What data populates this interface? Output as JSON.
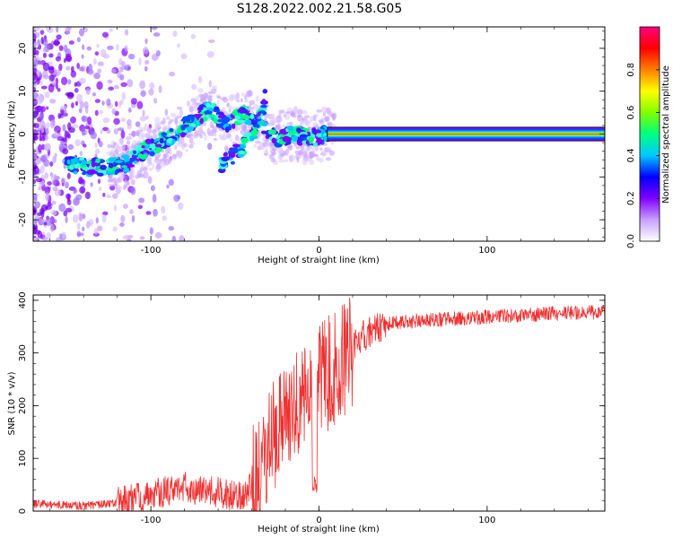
{
  "title": "S128.2022.002.21.58.G05",
  "chart_data": [
    {
      "type": "heatmap",
      "xlabel": "Height of straight line (km)",
      "ylabel": "Frequency (Hz)",
      "xlim": [
        -170,
        170
      ],
      "ylim": [
        -25,
        25
      ],
      "xticks": [
        -100,
        0,
        100
      ],
      "yticks": [
        -20,
        -10,
        0,
        10,
        20
      ],
      "colorbar": {
        "label": "Normalized spectral amplitude",
        "range": [
          0,
          1
        ],
        "ticks": [
          0.0,
          0.2,
          0.4,
          0.6,
          0.8
        ],
        "colors": [
          "#ffffff",
          "#c8a0ff",
          "#8000ff",
          "#0000ff",
          "#00c8ff",
          "#00ff80",
          "#80ff00",
          "#ffff00",
          "#ff8000",
          "#ff0000",
          "#ff0080"
        ]
      },
      "ridge": [
        {
          "x": -150,
          "y": -7
        },
        {
          "x": -130,
          "y": -8
        },
        {
          "x": -115,
          "y": -7
        },
        {
          "x": -105,
          "y": -4
        },
        {
          "x": -95,
          "y": -2
        },
        {
          "x": -85,
          "y": 0
        },
        {
          "x": -75,
          "y": 3
        },
        {
          "x": -65,
          "y": 6
        },
        {
          "x": -55,
          "y": 2
        },
        {
          "x": -45,
          "y": 5
        },
        {
          "x": -35,
          "y": 2
        },
        {
          "x": -25,
          "y": -1
        },
        {
          "x": -15,
          "y": 0
        },
        {
          "x": -5,
          "y": -1
        },
        {
          "x": 5,
          "y": 0
        },
        {
          "x": 170,
          "y": 0
        }
      ],
      "branch": [
        {
          "x": -58,
          "y": -7
        },
        {
          "x": -48,
          "y": -4
        },
        {
          "x": -40,
          "y": 0
        },
        {
          "x": -34,
          "y": 5
        },
        {
          "x": -32,
          "y": 10
        }
      ]
    },
    {
      "type": "line",
      "xlabel": "Height of straight line (km)",
      "ylabel": "SNR (10 * v/v)",
      "xlim": [
        -170,
        170
      ],
      "ylim": [
        0,
        410
      ],
      "xticks": [
        -100,
        0,
        100
      ],
      "yticks": [
        0,
        100,
        200,
        300,
        400
      ],
      "color": "#ee3030",
      "trend": [
        {
          "x": -170,
          "y": 14
        },
        {
          "x": -140,
          "y": 10
        },
        {
          "x": -120,
          "y": 16
        },
        {
          "x": -100,
          "y": 30
        },
        {
          "x": -80,
          "y": 45
        },
        {
          "x": -60,
          "y": 35
        },
        {
          "x": -45,
          "y": 25
        },
        {
          "x": -35,
          "y": 80
        },
        {
          "x": -25,
          "y": 160
        },
        {
          "x": -15,
          "y": 210
        },
        {
          "x": -5,
          "y": 240
        },
        {
          "x": 5,
          "y": 260
        },
        {
          "x": 15,
          "y": 290
        },
        {
          "x": 25,
          "y": 330
        },
        {
          "x": 40,
          "y": 355
        },
        {
          "x": 60,
          "y": 362
        },
        {
          "x": 80,
          "y": 365
        },
        {
          "x": 100,
          "y": 368
        },
        {
          "x": 120,
          "y": 372
        },
        {
          "x": 140,
          "y": 375
        },
        {
          "x": 170,
          "y": 378
        }
      ]
    }
  ]
}
